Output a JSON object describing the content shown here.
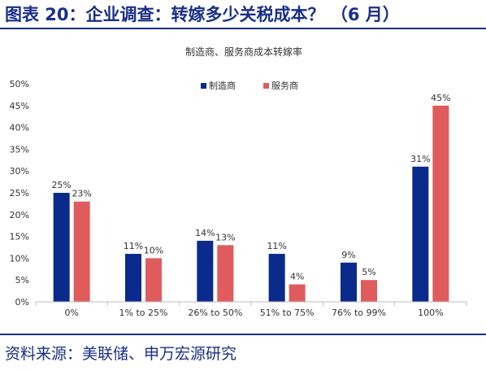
{
  "figure": {
    "title": "图表 20：企业调查：转嫁多少关税成本？ （6 月）",
    "source": "资料来源：美联储、申万宏源研究"
  },
  "colors": {
    "brand": "#1a2f87",
    "series_1": "#0a2a8c",
    "series_2": "#e05c5c",
    "axis": "#bfbfbf"
  },
  "chart_data": {
    "type": "bar",
    "title": "制造商、服务商成本转嫁率",
    "categories": [
      "0%",
      "1% to 25%",
      "26% to 50%",
      "51% to 75%",
      "76% to 99%",
      "100%"
    ],
    "series": [
      {
        "name": "制造商",
        "values": [
          25,
          11,
          14,
          11,
          9,
          31
        ],
        "labels": [
          "25%",
          "11%",
          "14%",
          "11%",
          "9%",
          "31%"
        ]
      },
      {
        "name": "服务商",
        "values": [
          23,
          10,
          13,
          4,
          5,
          45
        ],
        "labels": [
          "23%",
          "10%",
          "13%",
          "4%",
          "5%",
          "45%"
        ]
      }
    ],
    "ylim": [
      0,
      50
    ],
    "yticks": [
      0,
      5,
      10,
      15,
      20,
      25,
      30,
      35,
      40,
      45,
      50
    ],
    "ytick_labels": [
      "0%",
      "5%",
      "10%",
      "15%",
      "20%",
      "25%",
      "30%",
      "35%",
      "40%",
      "45%",
      "50%"
    ],
    "legend_position": "top-center",
    "grid": false
  }
}
